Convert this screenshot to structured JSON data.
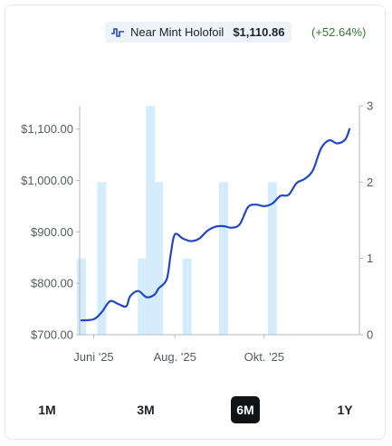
{
  "legend": {
    "label": "Near Mint Holofoil",
    "price": "$1,110.86",
    "change": "(+52.64%)"
  },
  "tabs": [
    {
      "label": "1M",
      "active": false
    },
    {
      "label": "3M",
      "active": false
    },
    {
      "label": "6M",
      "active": true
    },
    {
      "label": "1Y",
      "active": false
    }
  ],
  "colors": {
    "line": "#2147c7",
    "bars": "#d4ecfb",
    "change": "#2e7d32",
    "active_tab": "#111315"
  },
  "chart_data": {
    "type": "line",
    "title": "",
    "xlabel": "",
    "ylabel": "",
    "x_ticks": [
      "Juni '25",
      "Aug. '25",
      "Okt. '25"
    ],
    "y_left": {
      "ticks": [
        "$700.00",
        "$800.00",
        "$900.00",
        "$1,000.00",
        "$1,100.00"
      ],
      "range": [
        700,
        1145
      ]
    },
    "y_right": {
      "ticks": [
        "0",
        "1",
        "2",
        "3"
      ],
      "range": [
        0,
        3
      ]
    },
    "grid": false,
    "series": [
      {
        "name": "Near Mint Holofoil",
        "kind": "line",
        "axis": "left",
        "values": [
          [
            0,
            728
          ],
          [
            3,
            730
          ],
          [
            5,
            744
          ],
          [
            7,
            765
          ],
          [
            9,
            760
          ],
          [
            11,
            755
          ],
          [
            12,
            775
          ],
          [
            14,
            785
          ],
          [
            16,
            773
          ],
          [
            18,
            778
          ],
          [
            19,
            790
          ],
          [
            21,
            808
          ],
          [
            22,
            858
          ],
          [
            23,
            895
          ],
          [
            25,
            887
          ],
          [
            27,
            882
          ],
          [
            29,
            887
          ],
          [
            31,
            902
          ],
          [
            33,
            910
          ],
          [
            35,
            911
          ],
          [
            37,
            908
          ],
          [
            39,
            915
          ],
          [
            41,
            948
          ],
          [
            43,
            953
          ],
          [
            45,
            950
          ],
          [
            47,
            955
          ],
          [
            49,
            970
          ],
          [
            51,
            972
          ],
          [
            53,
            995
          ],
          [
            55,
            1003
          ],
          [
            57,
            1020
          ],
          [
            59,
            1062
          ],
          [
            61,
            1078
          ],
          [
            63,
            1072
          ],
          [
            65,
            1080
          ],
          [
            66,
            1100
          ]
        ]
      },
      {
        "name": "",
        "kind": "bar",
        "axis": "right",
        "values": [
          [
            0,
            1
          ],
          [
            5,
            2
          ],
          [
            15,
            1
          ],
          [
            17,
            3
          ],
          [
            19,
            2
          ],
          [
            26,
            1
          ],
          [
            35,
            2
          ],
          [
            47,
            2
          ]
        ]
      }
    ]
  }
}
